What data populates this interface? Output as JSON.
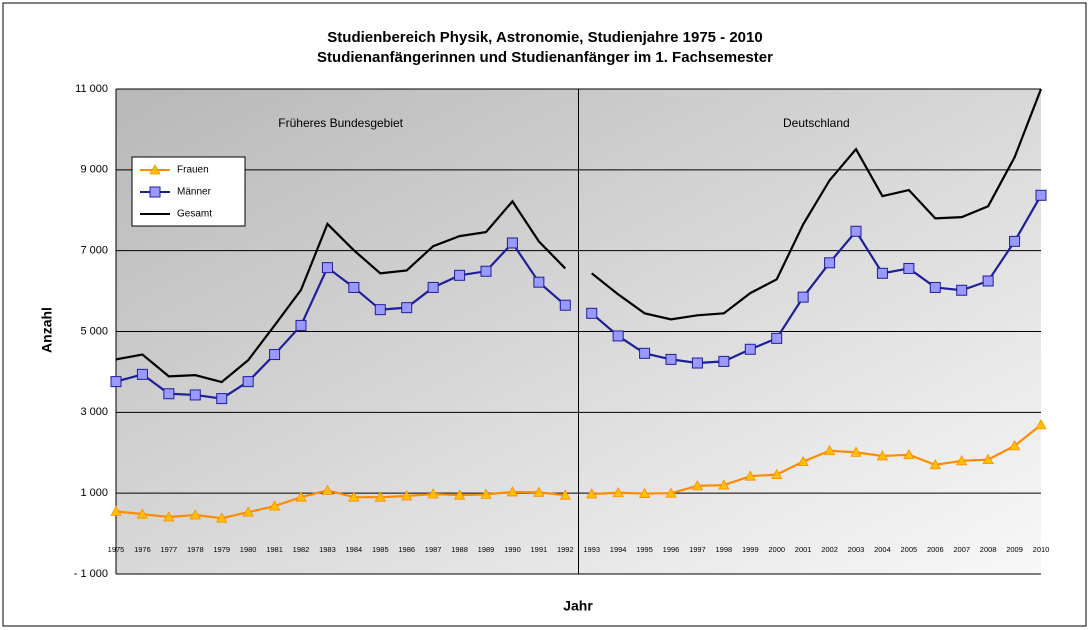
{
  "chart_data": {
    "type": "line",
    "title": "Studienbereich Physik, Astronomie,  Studienjahre 1975 - 2010",
    "subtitle": "Studienanfängerinnen und Studienanfänger im 1. Fachsemester",
    "y_label": "Anzahl",
    "x_label": "Jahr",
    "categories": [
      "1975",
      "1976",
      "1977",
      "1978",
      "1979",
      "1980",
      "1981",
      "1982",
      "1983",
      "1984",
      "1985",
      "1986",
      "1987",
      "1988",
      "1989",
      "1990",
      "1991",
      "1992",
      "1993",
      "1994",
      "1995",
      "1996",
      "1997",
      "1998",
      "1999",
      "2000",
      "2001",
      "2002",
      "2003",
      "2004",
      "2005",
      "2006",
      "2007",
      "2008",
      "2009",
      "2010"
    ],
    "regions": [
      {
        "label": "Früheres Bundesgebiet",
        "first": "1975",
        "last": "1992"
      },
      {
        "label": "Deutschland",
        "first": "1993",
        "last": "2010"
      }
    ],
    "series": [
      {
        "name": "Frauen",
        "color": "#ff8c00",
        "marker": "triangle",
        "marker_color": "#ffc000",
        "values": [
          550,
          480,
          410,
          460,
          380,
          530,
          680,
          900,
          1070,
          900,
          900,
          930,
          980,
          950,
          970,
          1030,
          1020,
          950,
          980,
          1010,
          990,
          1000,
          1180,
          1200,
          1420,
          1460,
          1780,
          2050,
          2010,
          1920,
          1950,
          1700,
          1800,
          1830,
          2170,
          2690
        ]
      },
      {
        "name": "Männer",
        "color": "#1f1f9a",
        "marker": "square",
        "marker_color": "#9999ff",
        "values": [
          3760,
          3940,
          3460,
          3430,
          3340,
          3760,
          4430,
          5150,
          6580,
          6090,
          5540,
          5590,
          6090,
          6390,
          6490,
          7190,
          6220,
          5650,
          5450,
          4890,
          4460,
          4310,
          4220,
          4260,
          4560,
          4830,
          5850,
          6700,
          7480,
          6440,
          6560,
          6090,
          6020,
          6250,
          7230,
          8370
        ]
      },
      {
        "name": "Gesamt",
        "color": "#000000",
        "values": [
          4310,
          4430,
          3890,
          3920,
          3750,
          4290,
          5150,
          6030,
          7660,
          7010,
          6440,
          6510,
          7110,
          7360,
          7460,
          8220,
          7230,
          6560,
          6440,
          5920,
          5450,
          5300,
          5400,
          5450,
          5950,
          6290,
          7650,
          8740,
          9510,
          8350,
          8500,
          7800,
          7830,
          8100,
          9310,
          11000
        ]
      }
    ],
    "ylim": [
      -1000,
      11000
    ],
    "yticks": [
      {
        "value": -1000,
        "label": "- 1 000"
      },
      {
        "value": 1000,
        "label": "1 000"
      },
      {
        "value": 3000,
        "label": "3 000"
      },
      {
        "value": 5000,
        "label": "5 000"
      },
      {
        "value": 7000,
        "label": "7 000"
      },
      {
        "value": 9000,
        "label": "9 000"
      },
      {
        "value": 11000,
        "label": "11 000"
      }
    ],
    "grid": true,
    "legend": "upper left"
  }
}
